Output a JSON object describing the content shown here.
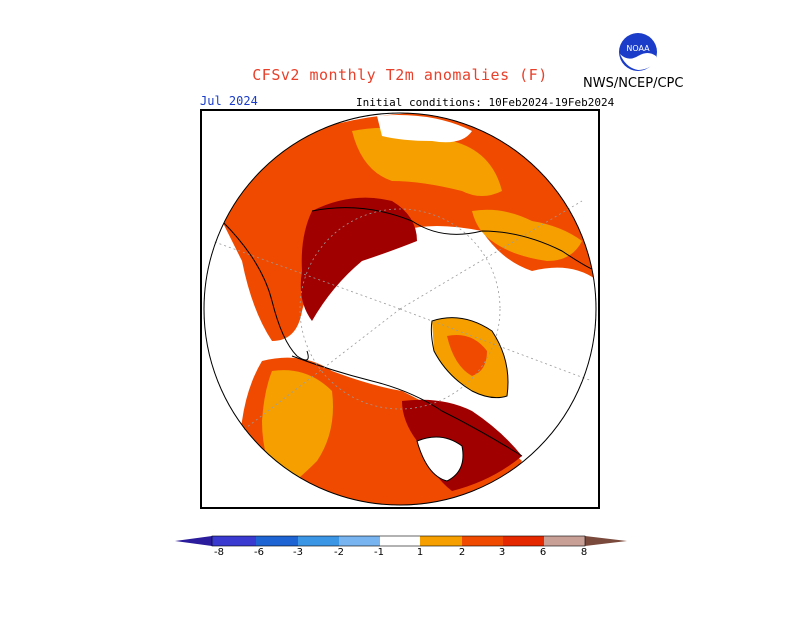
{
  "header": {
    "title": "CFSv2 monthly T2m anomalies (F)",
    "organization": "NWS/NCEP/CPC",
    "logo_text": "NOAA"
  },
  "map": {
    "month_label": "Jul 2024",
    "initial_conditions": "Initial conditions: 10Feb2024-19Feb2024",
    "projection": "north polar stereographic"
  },
  "legend": {
    "labels": [
      "-8",
      "-6",
      "-3",
      "-2",
      "-1",
      "1",
      "2",
      "3",
      "6",
      "8"
    ],
    "colors": [
      "#2a1c9c",
      "#3a3ad0",
      "#1e64d2",
      "#3c96e6",
      "#78b4f0",
      "#ffffff",
      "#f5a000",
      "#f04a00",
      "#e62800",
      "#a00000",
      "#c8a096",
      "#7a4a3c"
    ]
  }
}
